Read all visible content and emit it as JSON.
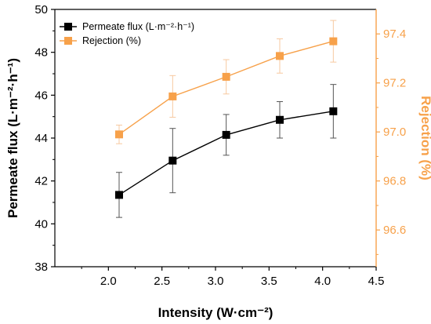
{
  "colors": {
    "left_axis": "#000000",
    "right_axis": "#F7A14A",
    "flux_series": "#000000",
    "rejection_series": "#F7A14A",
    "rejection_errorbar": "#F7C9A0",
    "flux_errorbar": "#555555"
  },
  "chart_data": {
    "type": "line",
    "title": "",
    "xlabel": "Intensity (W·cm⁻²)",
    "ylabel_left": "Permeate flux (L·m⁻²·h⁻¹)",
    "ylabel_right": "Rejection (%)",
    "xlim": [
      1.5,
      4.5
    ],
    "ylim_left": [
      38,
      50
    ],
    "ylim_right": [
      96.45,
      97.5
    ],
    "x_ticks": [
      "2.0",
      "2.5",
      "3.0",
      "3.5",
      "4.0",
      "4.5"
    ],
    "x_tick_values": [
      2.0,
      2.5,
      3.0,
      3.5,
      4.0,
      4.5
    ],
    "y_left_ticks": [
      "38",
      "40",
      "42",
      "44",
      "46",
      "48",
      "50"
    ],
    "y_left_tick_values": [
      38,
      40,
      42,
      44,
      46,
      48,
      50
    ],
    "y_right_ticks": [
      "96.6",
      "96.8",
      "97.0",
      "97.2",
      "97.4"
    ],
    "y_right_tick_values": [
      96.6,
      96.8,
      97.0,
      97.2,
      97.4
    ],
    "legend_position": "top-left",
    "x": [
      2.1,
      2.6,
      3.1,
      3.6,
      4.1
    ],
    "series": [
      {
        "name": "Permeate flux (L·m⁻²·h⁻¹)",
        "axis": "left",
        "marker": "square",
        "values": [
          41.35,
          42.95,
          44.15,
          44.85,
          45.25
        ],
        "error": [
          1.05,
          1.5,
          0.95,
          0.85,
          1.25
        ]
      },
      {
        "name": "Rejection (%)",
        "axis": "right",
        "marker": "square",
        "values": [
          96.99,
          97.145,
          97.225,
          97.31,
          97.37
        ],
        "error": [
          0.038,
          0.085,
          0.07,
          0.07,
          0.085
        ]
      }
    ]
  }
}
